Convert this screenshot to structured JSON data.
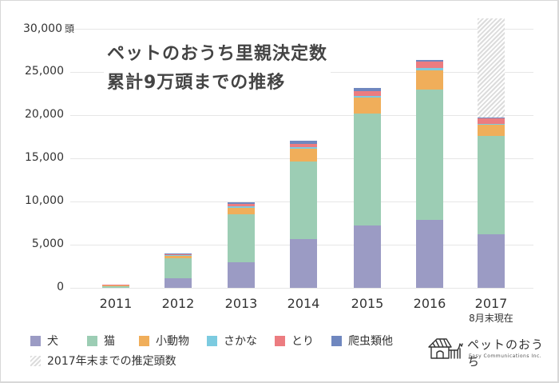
{
  "chart_data": {
    "type": "bar",
    "stacked": true,
    "title": "ペットのおうち里親決定数 累計9万頭までの推移",
    "title_lines": [
      "ペットのおうち里親決定数",
      "累計9万頭までの推移"
    ],
    "xlabel": "",
    "ylabel": "頭",
    "ylim": [
      0,
      30000
    ],
    "yticks": [
      0,
      5000,
      10000,
      15000,
      20000,
      25000,
      30000
    ],
    "ytick_labels": [
      "0",
      "5,000",
      "10,000",
      "15,000",
      "20,000",
      "25,000",
      "30,000"
    ],
    "y_unit": "頭",
    "grid": true,
    "legend_position": "bottom-left",
    "categories": [
      "2011",
      "2012",
      "2013",
      "2014",
      "2015",
      "2016",
      "2017"
    ],
    "category_sublabels": [
      "",
      "",
      "",
      "",
      "",
      "",
      "8月末現在"
    ],
    "series": [
      {
        "name": "犬",
        "color": "#9b9bc4",
        "values": [
          0,
          1140,
          2990,
          5650,
          7220,
          7870,
          6190
        ]
      },
      {
        "name": "猫",
        "color": "#9ccdb4",
        "values": [
          150,
          2310,
          5500,
          9000,
          12990,
          15120,
          11400
        ]
      },
      {
        "name": "小動物",
        "color": "#f0ae5a",
        "values": [
          200,
          370,
          740,
          1480,
          1800,
          2220,
          1300
        ]
      },
      {
        "name": "さかな",
        "color": "#7ccbe0",
        "values": [
          20,
          20,
          190,
          150,
          210,
          230,
          100
        ]
      },
      {
        "name": "とり",
        "color": "#ec7c80",
        "values": [
          30,
          60,
          270,
          420,
          580,
          740,
          620
        ]
      },
      {
        "name": "爬虫類他",
        "color": "#6f87bf",
        "values": [
          0,
          60,
          190,
          350,
          350,
          240,
          110
        ]
      },
      {
        "name": "2017年末までの推定頭数",
        "pattern": "hatch",
        "color": "#dcdcdc",
        "values": [
          0,
          0,
          0,
          0,
          0,
          0,
          11450
        ]
      }
    ],
    "totals": [
      400,
      3960,
      9880,
      17050,
      23150,
      26420,
      19720
    ],
    "estimated_total_2017": 31170
  },
  "legend": {
    "items": [
      {
        "label": "犬",
        "color": "#9b9bc4"
      },
      {
        "label": "猫",
        "color": "#9ccdb4"
      },
      {
        "label": "小動物",
        "color": "#f0ae5a"
      },
      {
        "label": "さかな",
        "color": "#7ccbe0"
      },
      {
        "label": "とり",
        "color": "#ec7c80"
      },
      {
        "label": "爬虫類他",
        "color": "#6f87bf"
      }
    ],
    "estimate_label": "2017年末までの推定頭数"
  },
  "logo": {
    "name": "ペットのおうち",
    "company": "Easy Communications Inc.",
    "icon": "doghouse-cat-icon"
  }
}
